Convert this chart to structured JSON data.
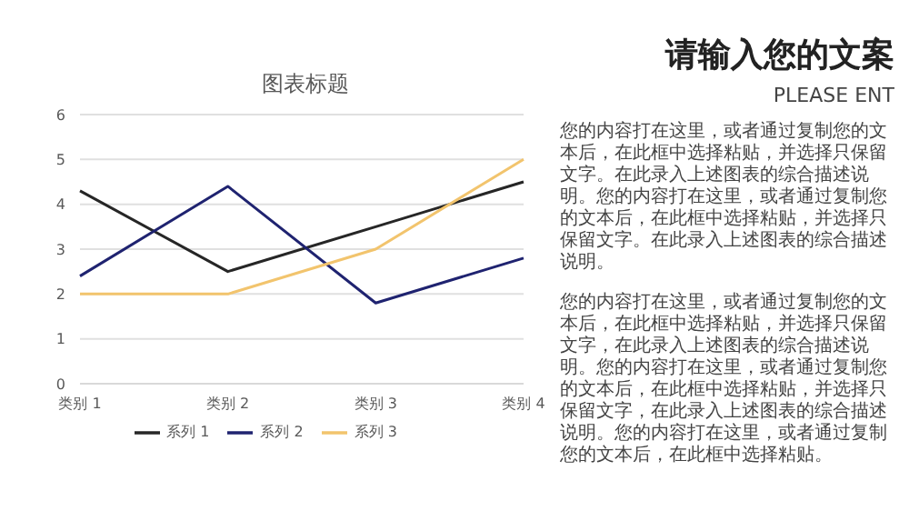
{
  "chart_data": {
    "type": "line",
    "title": "图表标题",
    "categories": [
      "类别 1",
      "类别 2",
      "类别 3",
      "类别 4"
    ],
    "series": [
      {
        "name": "系列 1",
        "color": "#262626",
        "values": [
          4.3,
          2.5,
          3.5,
          4.5
        ]
      },
      {
        "name": "系列 2",
        "color": "#1f2370",
        "values": [
          2.4,
          4.4,
          1.8,
          2.8
        ]
      },
      {
        "name": "系列 3",
        "color": "#f2c46d",
        "values": [
          2,
          2,
          3,
          5
        ]
      }
    ],
    "ylim": [
      0,
      6
    ],
    "yticks": [
      0,
      1,
      2,
      3,
      4,
      5,
      6
    ],
    "grid": "y",
    "legend": "bottom",
    "marker": "none",
    "annotations": [
      "请输入您的文案",
      "PLEASE ENT",
      "您的内容打在这里，或者通过复制您的文本后，在此框中选择粘贴，并选择只保留文字。在此录入上述图表的综合描述说明。您的内容打在这里，或者通过复制您的文本后，在此框中选择粘贴，并选择只保留文字。在此录入上述图表的综合描述说明。",
      "您的内容打在这里，或者通过复制您的文本后，在此框中选择粘贴，并选择只保留文字，在此录入上述图表的综合描述说明。您的内容打在这里，或者通过复制您的文本后，在此框中选择粘贴，并选择只保留文字，在此录入上述图表的综合描述说明。您的内容打在这里，或者通过复制您的文本后，在此框中选择粘贴。"
    ]
  }
}
